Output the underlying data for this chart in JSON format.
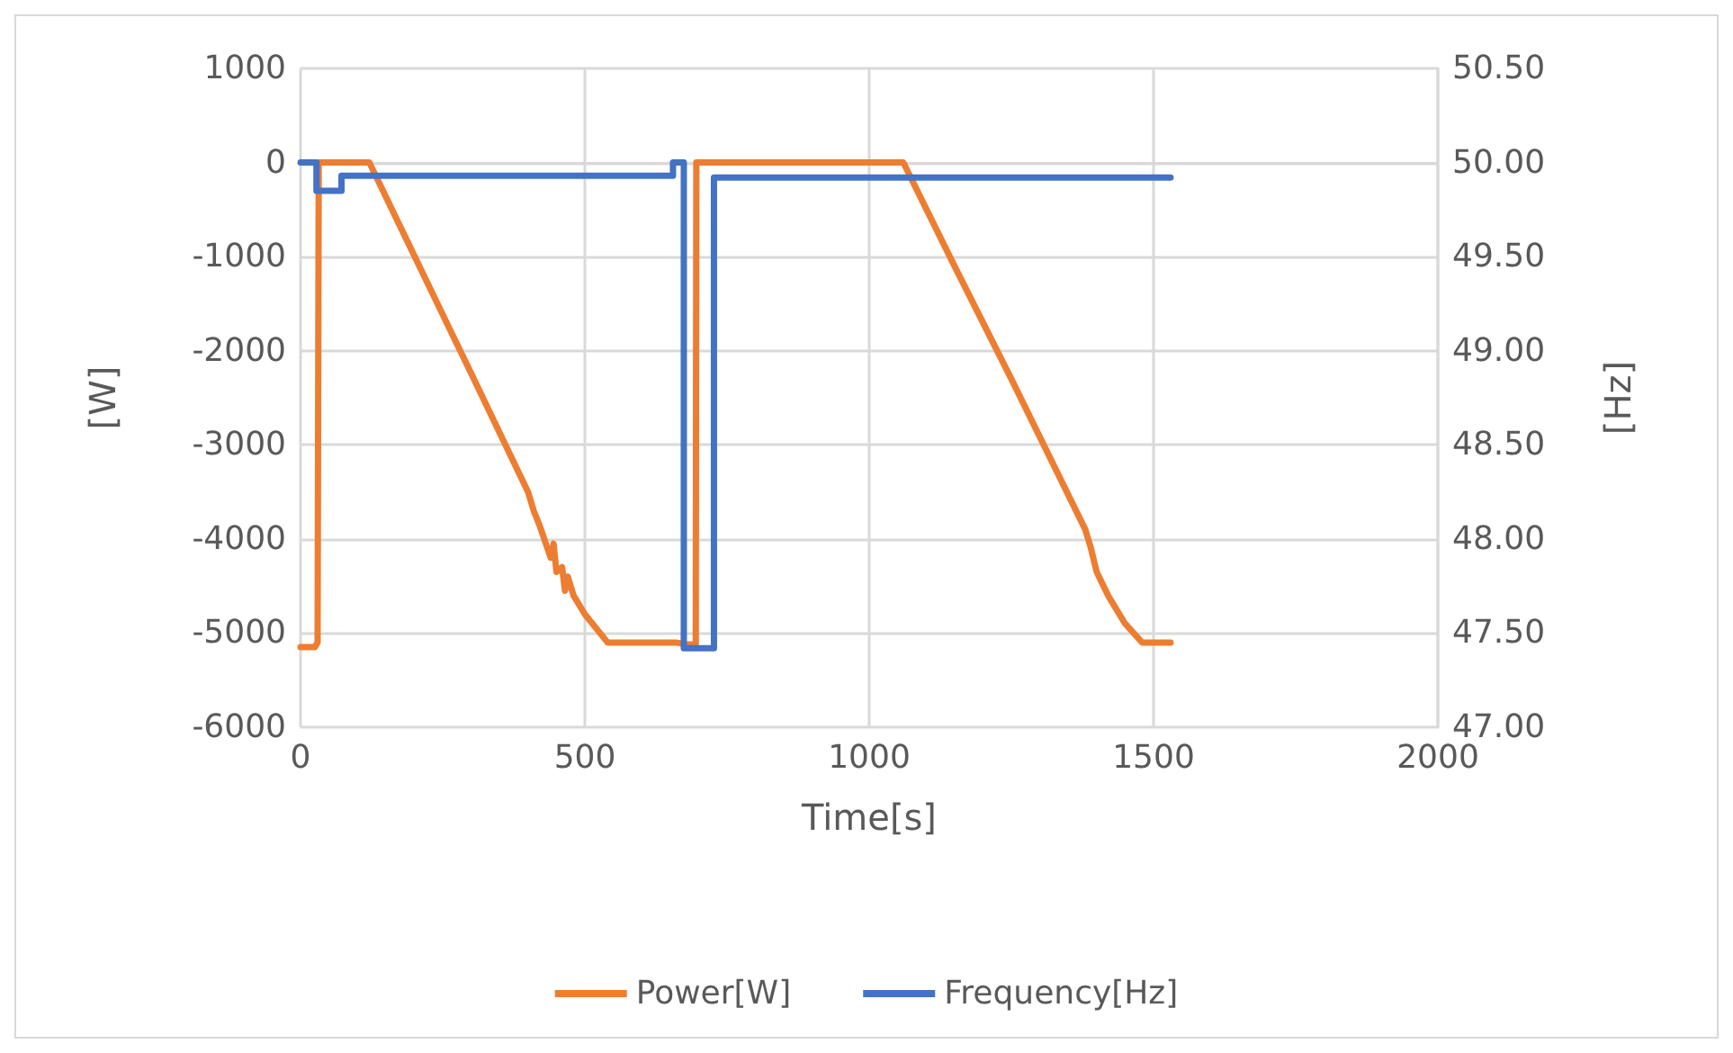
{
  "chart_data": {
    "type": "line",
    "xlabel": "Time[s]",
    "ylabel": "[W]",
    "y2label": "[Hz]",
    "xlim": [
      0,
      2000
    ],
    "xticks": [
      0,
      500,
      1000,
      1500,
      2000
    ],
    "ylim": [
      -6000,
      1000
    ],
    "yticks": [
      -6000,
      -5000,
      -4000,
      -3000,
      -2000,
      -1000,
      0,
      1000
    ],
    "y2lim": [
      47,
      50.5
    ],
    "y2ticks": [
      {
        "value": 47,
        "label": "47.00"
      },
      {
        "value": 47.5,
        "label": "47.50"
      },
      {
        "value": 48,
        "label": "48.00"
      },
      {
        "value": 48.5,
        "label": "48.50"
      },
      {
        "value": 49,
        "label": "49.00"
      },
      {
        "value": 49.5,
        "label": "49.50"
      },
      {
        "value": 50,
        "label": "50.00"
      },
      {
        "value": 50.5,
        "label": "50.50"
      }
    ],
    "grid": true,
    "legend": "bottom",
    "marker": "none",
    "line_style": "solid",
    "series": [
      {
        "name": "Power[W]",
        "color": "#ed7d31",
        "x": [
          0,
          25,
          30,
          31,
          32,
          121,
          200,
          300,
          400,
          410,
          420,
          440,
          445,
          450,
          460,
          465,
          470,
          480,
          500,
          540,
          600,
          660,
          680,
          695,
          696,
          1060,
          1150,
          1250,
          1380,
          1390,
          1400,
          1420,
          1450,
          1480,
          1530
        ],
        "values": [
          -5150,
          -5150,
          -5100,
          -2500,
          0,
          0,
          -990,
          -2240,
          -3500,
          -3700,
          -3850,
          -4200,
          -4050,
          -4350,
          -4300,
          -4550,
          -4400,
          -4600,
          -4800,
          -5100,
          -5100,
          -5100,
          -5120,
          -5120,
          0,
          0,
          -1100,
          -2300,
          -3900,
          -4100,
          -4350,
          -4600,
          -4900,
          -5100,
          -5100
        ]
      },
      {
        "name": "Frequency[Hz]",
        "color": "#4472c4",
        "axis": "y2",
        "x": [
          0,
          28,
          28,
          72,
          72,
          655,
          655,
          674,
          674,
          727,
          727,
          1530
        ],
        "values": [
          50,
          50,
          49.85,
          49.85,
          49.93,
          49.93,
          50,
          50,
          47.42,
          47.42,
          49.92,
          49.92
        ]
      }
    ]
  }
}
